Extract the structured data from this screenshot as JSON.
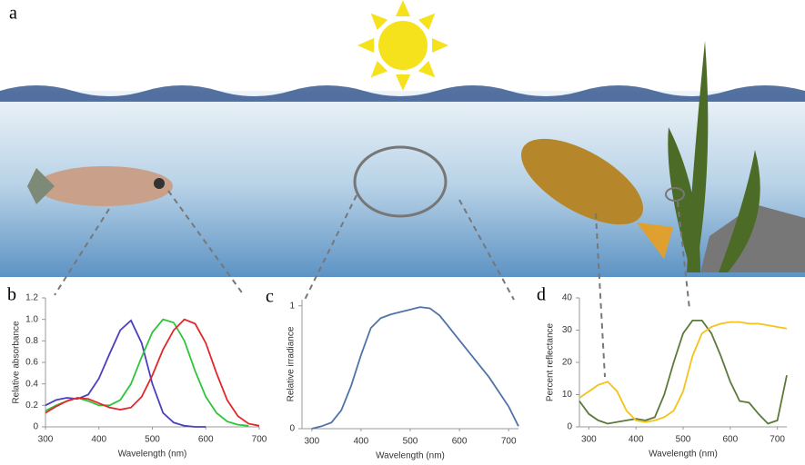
{
  "figure_label": "a",
  "chart_data": [
    {
      "type": "line",
      "panel": "b",
      "y_label": "Relative absorbance",
      "x_label": "Wavelength (nm)",
      "x": [
        300,
        320,
        340,
        360,
        380,
        400,
        420,
        440,
        460,
        480,
        500,
        520,
        540,
        560,
        580,
        600,
        620,
        640,
        660,
        680,
        700
      ],
      "xlim": [
        300,
        700
      ],
      "xticks": [
        300,
        400,
        500,
        600,
        700
      ],
      "ylim": [
        0,
        1.2
      ],
      "yticks": [
        0,
        0.2,
        0.4,
        0.6,
        0.8,
        {
          "value": 1,
          "label": "1.0"
        },
        1.2
      ],
      "series": [
        {
          "color": "#4a3fbf",
          "values": [
            0.2,
            0.25,
            0.27,
            0.26,
            0.3,
            0.45,
            0.68,
            0.9,
            0.99,
            0.78,
            0.4,
            0.13,
            0.04,
            0.01,
            0,
            0,
            null,
            null,
            null,
            null,
            null
          ]
        },
        {
          "color": "#2fc43a",
          "values": [
            0.15,
            0.2,
            0.24,
            0.27,
            0.24,
            0.2,
            0.2,
            0.25,
            0.4,
            0.65,
            0.88,
            1.0,
            0.97,
            0.8,
            0.52,
            0.28,
            0.13,
            0.05,
            0.02,
            0.01,
            null
          ]
        },
        {
          "color": "#e0282a",
          "values": [
            0.13,
            0.19,
            0.24,
            0.27,
            0.26,
            0.22,
            0.18,
            0.16,
            0.18,
            0.28,
            0.48,
            0.72,
            0.9,
            1.0,
            0.96,
            0.78,
            0.5,
            0.25,
            0.1,
            0.03,
            0.01
          ]
        }
      ]
    },
    {
      "type": "line",
      "panel": "c",
      "y_label": "Relative irradiance",
      "x_label": "Wavelength (nm)",
      "x": [
        300,
        320,
        340,
        360,
        380,
        400,
        420,
        440,
        460,
        480,
        500,
        520,
        540,
        560,
        580,
        600,
        620,
        640,
        660,
        680,
        700,
        720
      ],
      "xlim": [
        280,
        720
      ],
      "xticks": [
        300,
        400,
        500,
        600,
        700
      ],
      "ylim": [
        0,
        1.05
      ],
      "yticks": [
        0,
        1
      ],
      "series": [
        {
          "color": "#4f73a8",
          "values": [
            0,
            0.02,
            0.05,
            0.15,
            0.35,
            0.6,
            0.82,
            0.9,
            0.93,
            0.95,
            0.97,
            0.99,
            0.98,
            0.92,
            0.82,
            0.72,
            0.62,
            0.52,
            0.42,
            0.3,
            0.18,
            0.02
          ]
        }
      ]
    },
    {
      "type": "line",
      "panel": "d",
      "y_label": "Percent reflectance",
      "x_label": "Wavelength (nm)",
      "x": [
        280,
        300,
        320,
        340,
        360,
        380,
        400,
        420,
        440,
        460,
        480,
        500,
        520,
        540,
        560,
        580,
        600,
        620,
        640,
        660,
        680,
        700,
        720
      ],
      "xlim": [
        280,
        720
      ],
      "xticks": [
        300,
        400,
        500,
        600,
        700
      ],
      "ylim": [
        0,
        40
      ],
      "yticks": [
        0,
        10,
        20,
        30,
        40
      ],
      "series": [
        {
          "color": "#5b7a3a",
          "values": [
            8,
            4,
            2,
            1,
            1.5,
            2,
            2.5,
            2,
            3,
            10,
            20,
            29,
            33,
            33,
            29,
            22,
            14,
            8,
            7.5,
            4,
            1,
            2,
            16
          ]
        },
        {
          "color": "#f3c319",
          "values": [
            9,
            11,
            13,
            14,
            11,
            5,
            2,
            1.5,
            2,
            3,
            5,
            11,
            22,
            29,
            31,
            32,
            32.5,
            32.5,
            32,
            32,
            31.5,
            31,
            30.5
          ]
        }
      ]
    }
  ]
}
